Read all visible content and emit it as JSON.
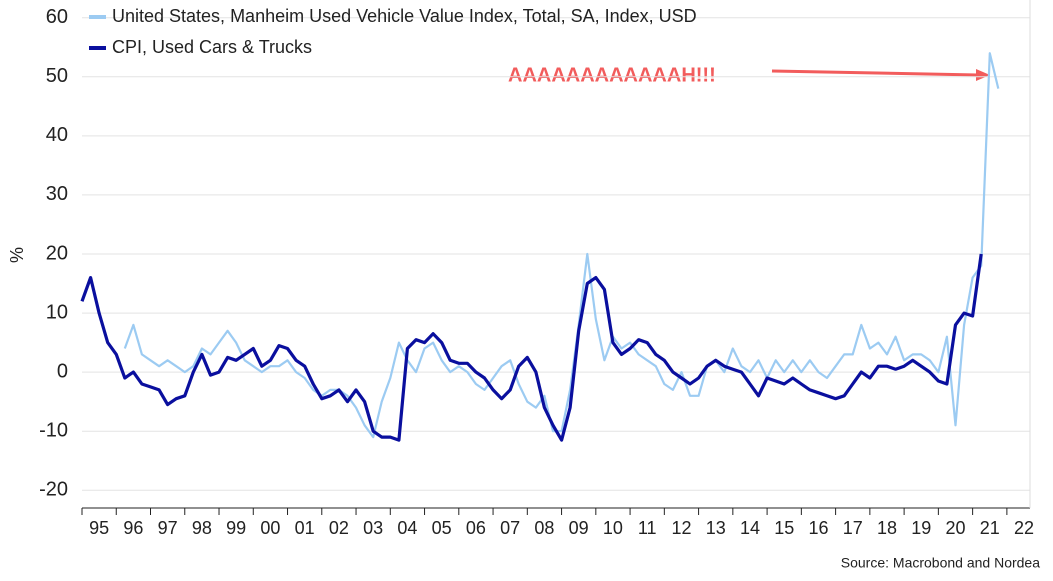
{
  "chart_data": {
    "type": "line",
    "y_label": "%",
    "source": "Source: Macrobond and Nordea",
    "annotation": "AAAAAAAAAAAAH!!!",
    "ylim": [
      -23,
      63
    ],
    "yticks": [
      -20,
      -10,
      0,
      10,
      20,
      30,
      40,
      50,
      60
    ],
    "grid": true,
    "legend": "top-left",
    "categories": [
      null,
      null,
      "95",
      null,
      null,
      null,
      "96",
      null,
      null,
      null,
      "97",
      null,
      null,
      null,
      "98",
      null,
      null,
      null,
      "99",
      null,
      null,
      null,
      "00",
      null,
      null,
      null,
      "01",
      null,
      null,
      null,
      "02",
      null,
      null,
      null,
      "03",
      null,
      null,
      null,
      "04",
      null,
      null,
      null,
      "05",
      null,
      null,
      null,
      "06",
      null,
      null,
      null,
      "07",
      null,
      null,
      null,
      "08",
      null,
      null,
      null,
      "09",
      null,
      null,
      null,
      "10",
      null,
      null,
      null,
      "11",
      null,
      null,
      null,
      "12",
      null,
      null,
      null,
      "13",
      null,
      null,
      null,
      "14",
      null,
      null,
      null,
      "15",
      null,
      null,
      null,
      "16",
      null,
      null,
      null,
      "17",
      null,
      null,
      null,
      "18",
      null,
      null,
      null,
      "19",
      null,
      null,
      null,
      "20",
      null,
      null,
      null,
      "21",
      null,
      null,
      null,
      "22",
      null
    ],
    "series": [
      {
        "name": "United States, Manheim Used Vehicle Value Index, Total, SA, Index, USD",
        "color": "#9ccbf2",
        "width": 2.2,
        "values": [
          null,
          null,
          null,
          null,
          null,
          4,
          8,
          3,
          2,
          1,
          2,
          1,
          0,
          1,
          4,
          3,
          5,
          7,
          5,
          2,
          1,
          0,
          1,
          1,
          2,
          0,
          -1,
          -3,
          -4,
          -3,
          -3,
          -4,
          -6,
          -9,
          -11,
          -5,
          -1,
          5,
          2,
          0,
          4,
          5,
          2,
          0,
          1,
          0,
          -2,
          -3,
          -1,
          1,
          2,
          -2,
          -5,
          -6,
          -4,
          -10,
          -10,
          -3,
          8,
          20,
          9,
          2,
          6,
          4,
          5,
          3,
          2,
          1,
          -2,
          -3,
          0,
          -4,
          -4,
          1,
          2,
          0,
          4,
          1,
          0,
          2,
          -1,
          2,
          0,
          2,
          0,
          2,
          0,
          -1,
          1,
          3,
          3,
          8,
          4,
          5,
          3,
          6,
          2,
          3,
          3,
          2,
          0,
          6,
          -9,
          8,
          16,
          18,
          54,
          48,
          null,
          null,
          null,
          null
        ]
      },
      {
        "name": "CPI, Used Cars & Trucks",
        "color": "#0a0f9e",
        "width": 3.2,
        "values": [
          12,
          16,
          10,
          5,
          3,
          -1,
          0,
          -2,
          -2.5,
          -3,
          -5.5,
          -4.5,
          -4,
          0,
          3,
          -0.5,
          0,
          2.5,
          2,
          3,
          4,
          1,
          2,
          4.5,
          4,
          2,
          1,
          -2,
          -4.5,
          -4,
          -3,
          -5,
          -3,
          -5,
          -10,
          -11,
          -11,
          -11.5,
          4,
          5.5,
          5,
          6.5,
          5,
          2,
          1.5,
          1.5,
          0,
          -1,
          -3,
          -4.5,
          -3,
          1,
          2.5,
          0,
          -6,
          -9,
          -11.5,
          -6,
          7,
          15,
          16,
          14,
          5,
          3,
          4,
          5.5,
          5,
          3,
          2,
          0,
          -1,
          -2,
          -1,
          1,
          2,
          1,
          0.5,
          0,
          -2,
          -4,
          -1,
          -1.5,
          -2,
          -1,
          -2,
          -3,
          -3.5,
          -4,
          -4.5,
          -4,
          -2,
          0,
          -1,
          1,
          1,
          0.5,
          1,
          2,
          1,
          0,
          -1.5,
          -2,
          8,
          10,
          9.5,
          20,
          null,
          null,
          null,
          null,
          null,
          null
        ]
      }
    ]
  }
}
